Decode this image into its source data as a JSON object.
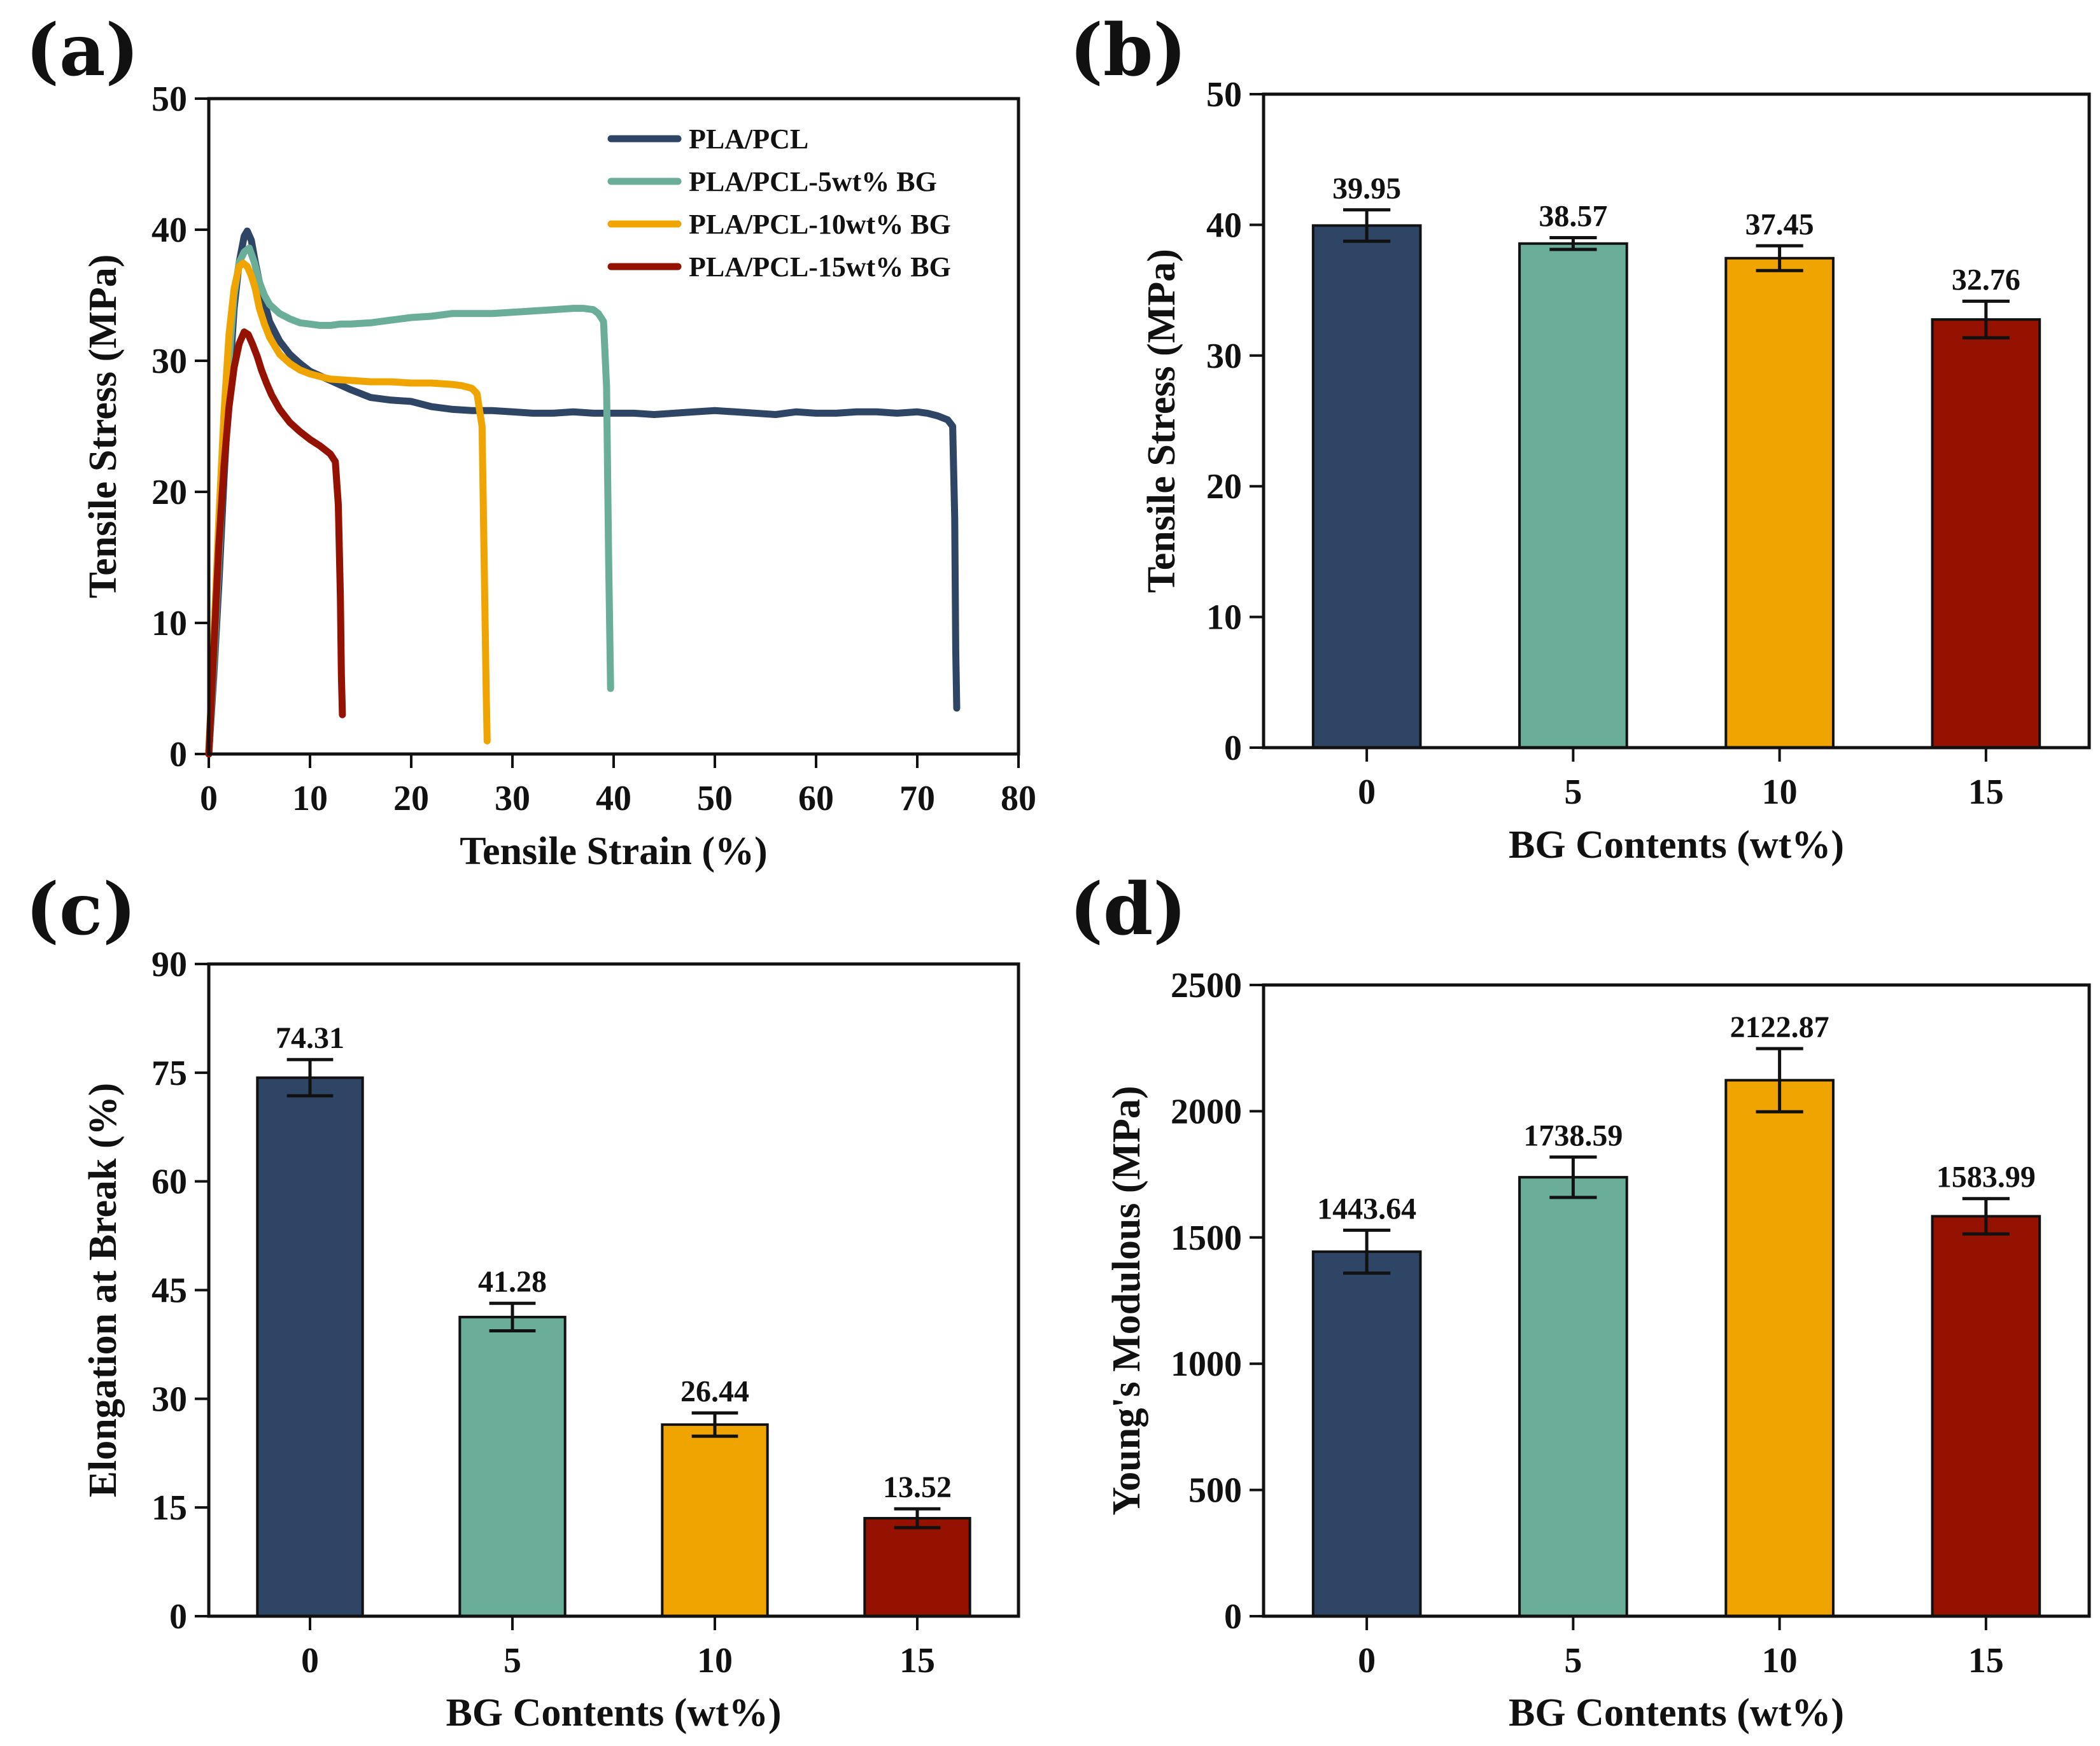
{
  "figure": {
    "panel_labels": [
      "(a)",
      "(b)",
      "(c)",
      "(d)"
    ]
  },
  "colors": {
    "navy": "#2f4566",
    "teal": "#6aad98",
    "orange": "#f0a400",
    "darkred": "#951200"
  },
  "chart_data": [
    {
      "panel": "(a)",
      "type": "line",
      "xlabel": "Tensile Strain (%)",
      "ylabel": "Tensile Stress (MPa)",
      "xlim": [
        0,
        80
      ],
      "ylim": [
        0,
        50
      ],
      "xticks": [
        0,
        10,
        20,
        30,
        40,
        50,
        60,
        70,
        80
      ],
      "yticks": [
        0,
        10,
        20,
        30,
        40,
        50
      ],
      "legend_position": "top-right",
      "series": [
        {
          "name": "PLA/PCL",
          "color": "#2f4566",
          "x": [
            0,
            0.5,
            1,
            1.5,
            2,
            2.5,
            3,
            3.5,
            3.8,
            4.2,
            4.6,
            5,
            5.5,
            6,
            7,
            8,
            9,
            10,
            12,
            14,
            16,
            18,
            20,
            22,
            24,
            26,
            28,
            30,
            32,
            34,
            36,
            38,
            40,
            42,
            44,
            46,
            48,
            50,
            52,
            54,
            56,
            58,
            60,
            62,
            64,
            66,
            68,
            70,
            71,
            72,
            73,
            73.5,
            73.7,
            73.8,
            73.9
          ],
          "y": [
            0,
            6,
            13,
            21,
            28,
            34,
            37.5,
            39.5,
            39.9,
            39.2,
            37.5,
            36,
            34.5,
            33,
            31.5,
            30.5,
            29.8,
            29.2,
            28.5,
            27.8,
            27.2,
            27.0,
            26.9,
            26.5,
            26.3,
            26.2,
            26.2,
            26.1,
            26.0,
            26.0,
            26.1,
            26.0,
            26.0,
            26.0,
            25.9,
            26.0,
            26.1,
            26.2,
            26.1,
            26.0,
            25.9,
            26.1,
            26.0,
            26.0,
            26.1,
            26.1,
            26.0,
            26.1,
            26.0,
            25.8,
            25.5,
            25.0,
            18,
            8,
            3.5
          ]
        },
        {
          "name": "PLA/PCL-5wt% BG",
          "color": "#6aad98",
          "x": [
            0,
            0.5,
            1,
            1.5,
            2,
            2.5,
            3,
            3.5,
            4,
            4.5,
            5,
            5.5,
            6,
            7,
            8,
            9,
            10,
            11,
            12,
            13,
            14,
            16,
            18,
            20,
            22,
            24,
            26,
            28,
            30,
            32,
            34,
            36,
            37,
            38,
            38.5,
            39,
            39.3,
            39.5,
            39.7
          ],
          "y": [
            0,
            7,
            15,
            23,
            30,
            35,
            37.5,
            38.3,
            38.6,
            37.5,
            36,
            35,
            34.3,
            33.6,
            33.2,
            32.9,
            32.8,
            32.7,
            32.7,
            32.8,
            32.8,
            32.9,
            33.1,
            33.3,
            33.4,
            33.6,
            33.6,
            33.6,
            33.7,
            33.8,
            33.9,
            34.0,
            34.0,
            33.9,
            33.6,
            33.0,
            28,
            15,
            5
          ]
        },
        {
          "name": "PLA/PCL-10wt% BG",
          "color": "#f0a400",
          "x": [
            0,
            0.5,
            1,
            1.5,
            2,
            2.5,
            3,
            3.4,
            3.8,
            4.2,
            4.6,
            5,
            5.5,
            6,
            7,
            8,
            9,
            10,
            11,
            12,
            14,
            16,
            18,
            20,
            22,
            24,
            25,
            26,
            26.5,
            27,
            27.2,
            27.4,
            27.5
          ],
          "y": [
            0,
            9,
            18,
            26,
            32,
            35.5,
            37.2,
            37.45,
            37.2,
            36.5,
            35.5,
            34,
            32.8,
            31.8,
            30.5,
            29.8,
            29.3,
            29.0,
            28.8,
            28.6,
            28.5,
            28.4,
            28.4,
            28.3,
            28.3,
            28.2,
            28.1,
            27.9,
            27.5,
            25,
            15,
            5,
            1
          ]
        },
        {
          "name": "PLA/PCL-15wt% BG",
          "color": "#951200",
          "x": [
            0,
            0.5,
            1,
            1.5,
            2,
            2.5,
            3,
            3.5,
            3.9,
            4.3,
            4.8,
            5.2,
            5.7,
            6.2,
            7,
            8,
            9,
            10,
            11,
            12,
            12.5,
            12.8,
            13,
            13.1,
            13.2
          ],
          "y": [
            0,
            8,
            16,
            22,
            26.5,
            29.5,
            31.3,
            32.2,
            32.0,
            31.3,
            30.3,
            29.3,
            28.3,
            27.4,
            26.3,
            25.3,
            24.6,
            24.0,
            23.5,
            22.9,
            22.3,
            19,
            12,
            6,
            3
          ]
        }
      ]
    },
    {
      "panel": "(b)",
      "type": "bar",
      "xlabel": "BG Contents (wt%)",
      "ylabel": "Tensile Stress (MPa)",
      "categories": [
        "0",
        "5",
        "10",
        "15"
      ],
      "values": [
        39.95,
        38.57,
        37.45,
        32.76
      ],
      "errors": [
        1.2,
        0.45,
        0.95,
        1.4
      ],
      "value_labels": [
        "39.95",
        "38.57",
        "37.45",
        "32.76"
      ],
      "ylim": [
        0,
        50
      ],
      "yticks": [
        0,
        10,
        20,
        30,
        40,
        50
      ],
      "bar_colors": [
        "#2f4566",
        "#6aad98",
        "#f0a400",
        "#951200"
      ]
    },
    {
      "panel": "(c)",
      "type": "bar",
      "xlabel": "BG Contents (wt%)",
      "ylabel": "Elongation at Break (%)",
      "categories": [
        "0",
        "5",
        "10",
        "15"
      ],
      "values": [
        74.31,
        41.28,
        26.44,
        13.52
      ],
      "errors": [
        2.5,
        1.9,
        1.6,
        1.3
      ],
      "value_labels": [
        "74.31",
        "41.28",
        "26.44",
        "13.52"
      ],
      "ylim": [
        0,
        90
      ],
      "yticks": [
        0,
        15,
        30,
        45,
        60,
        75,
        90
      ],
      "bar_colors": [
        "#2f4566",
        "#6aad98",
        "#f0a400",
        "#951200"
      ]
    },
    {
      "panel": "(d)",
      "type": "bar",
      "xlabel": "BG Contents (wt%)",
      "ylabel": "Young's Modulous (MPa)",
      "categories": [
        "0",
        "5",
        "10",
        "15"
      ],
      "values": [
        1443.64,
        1738.59,
        2122.87,
        1583.99
      ],
      "errors": [
        85,
        80,
        125,
        70
      ],
      "value_labels": [
        "1443.64",
        "1738.59",
        "2122.87",
        "1583.99"
      ],
      "ylim": [
        0,
        2500
      ],
      "yticks": [
        0,
        500,
        1000,
        1500,
        2000,
        2500
      ],
      "bar_colors": [
        "#2f4566",
        "#6aad98",
        "#f0a400",
        "#951200"
      ]
    }
  ]
}
